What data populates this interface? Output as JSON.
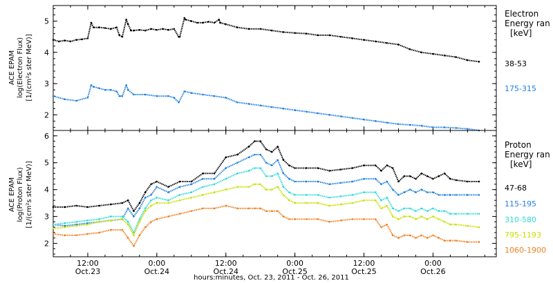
{
  "xlabel": "hours:minutes, Oct. 23, 2011 - Oct. 26, 2011",
  "x_ticks": [
    {
      "t": 12,
      "time": "12:00",
      "date": "Oct.23"
    },
    {
      "t": 24,
      "time": "0:00",
      "date": "Oct.24"
    },
    {
      "t": 36,
      "time": "12:00",
      "date": "Oct.24"
    },
    {
      "t": 48,
      "time": "0:00",
      "date": "Oct.25"
    },
    {
      "t": 60,
      "time": "12:00",
      "date": "Oct.25"
    },
    {
      "t": 72,
      "time": "0:00",
      "date": "Oct.26"
    }
  ],
  "chart_data": [
    {
      "type": "scatter",
      "ylabel": "ACE EPAM",
      "ylabel2": "log(Electron Flux)",
      "ylabel3": "[1/(cm²s ster MeV)]",
      "legend_title": [
        "Electron",
        "Energy ran",
        "[keV]"
      ],
      "xlim": [
        6,
        83
      ],
      "ylim": [
        1.5,
        5.5
      ],
      "yticks": [
        2,
        3,
        4,
        5
      ],
      "series": [
        {
          "name": "38-53",
          "color": "#000000",
          "x": [
            6,
            7,
            8,
            9,
            10,
            11,
            12,
            12.6,
            13,
            14,
            15,
            16,
            17,
            17.5,
            18,
            18.7,
            19,
            19.5,
            20,
            21,
            22,
            23,
            24,
            25,
            26,
            27,
            27.8,
            28,
            28.8,
            29,
            30,
            31,
            32,
            33,
            34,
            34.8,
            35,
            36,
            38,
            40,
            42,
            44,
            46,
            48,
            50,
            52,
            54,
            56,
            58,
            60,
            62,
            64,
            66,
            68,
            70,
            72,
            74,
            76,
            78,
            80
          ],
          "y": [
            4.4,
            4.35,
            4.38,
            4.35,
            4.4,
            4.42,
            4.45,
            4.95,
            4.8,
            4.8,
            4.78,
            4.75,
            4.8,
            4.55,
            4.5,
            5.05,
            4.9,
            4.7,
            4.7,
            4.72,
            4.7,
            4.75,
            4.72,
            4.75,
            4.72,
            4.75,
            4.5,
            4.5,
            5.1,
            5.05,
            5.0,
            4.95,
            4.95,
            4.98,
            4.95,
            5.05,
            4.95,
            4.9,
            4.8,
            4.75,
            4.75,
            4.7,
            4.65,
            4.62,
            4.6,
            4.55,
            4.55,
            4.5,
            4.45,
            4.4,
            4.35,
            4.3,
            4.25,
            4.1,
            4.0,
            3.95,
            3.9,
            3.85,
            3.75,
            3.7
          ]
        },
        {
          "name": "175-315",
          "color": "#1f7fdf",
          "x": [
            6,
            8,
            10,
            12,
            12.6,
            13,
            14,
            15,
            16,
            17,
            17.5,
            18,
            18.7,
            19,
            20,
            22,
            24,
            26,
            27,
            27.8,
            28.8,
            30,
            32,
            34,
            36,
            38,
            40,
            42,
            44,
            46,
            48,
            50,
            52,
            54,
            56,
            58,
            60,
            62,
            64,
            66,
            68,
            70,
            72,
            74,
            76,
            78,
            80
          ],
          "y": [
            2.6,
            2.5,
            2.45,
            2.55,
            2.95,
            2.9,
            2.85,
            2.8,
            2.8,
            2.75,
            2.6,
            2.6,
            2.95,
            2.8,
            2.65,
            2.65,
            2.6,
            2.6,
            2.55,
            2.4,
            2.75,
            2.7,
            2.65,
            2.6,
            2.55,
            2.4,
            2.35,
            2.3,
            2.25,
            2.2,
            2.15,
            2.1,
            2.05,
            2.0,
            1.95,
            1.9,
            1.85,
            1.8,
            1.75,
            1.7,
            1.68,
            1.65,
            1.6,
            1.6,
            1.58,
            1.55,
            1.5
          ]
        }
      ]
    },
    {
      "type": "scatter",
      "ylabel": "ACE EPAM",
      "ylabel2": "log(Proton Flux)",
      "ylabel3": "[1/(cm²s ster MeV)]",
      "legend_title": [
        "Proton",
        "Energy ran",
        "[keV]"
      ],
      "xlim": [
        6,
        83
      ],
      "ylim": [
        1.5,
        6.2
      ],
      "yticks": [
        2,
        3,
        4,
        5,
        6
      ],
      "series": [
        {
          "name": "47-68",
          "color": "#000000",
          "x": [
            6,
            8,
            10,
            12,
            14,
            16,
            18,
            19,
            20,
            21,
            22,
            23,
            24,
            26,
            28,
            30,
            32,
            34,
            36,
            38,
            40,
            41,
            42,
            43,
            44,
            45,
            46,
            47,
            48,
            50,
            52,
            54,
            56,
            58,
            60,
            62,
            63,
            64,
            65,
            66,
            67,
            68,
            69,
            70,
            71,
            72,
            73,
            74,
            75,
            76,
            78,
            80
          ],
          "y": [
            3.35,
            3.35,
            3.4,
            3.35,
            3.4,
            3.45,
            3.5,
            3.6,
            3.2,
            3.5,
            3.9,
            4.2,
            4.3,
            4.1,
            4.3,
            4.3,
            4.6,
            4.6,
            5.2,
            5.3,
            5.6,
            5.8,
            5.8,
            5.5,
            5.4,
            5.6,
            5.1,
            4.9,
            4.8,
            4.8,
            4.8,
            4.7,
            4.75,
            4.8,
            4.9,
            4.9,
            4.7,
            4.9,
            4.8,
            4.3,
            4.5,
            4.5,
            4.4,
            4.6,
            4.5,
            4.4,
            4.5,
            4.6,
            4.4,
            4.35,
            4.3,
            4.3
          ]
        },
        {
          "name": "115-195",
          "color": "#1f7fdf",
          "x": [
            6,
            8,
            10,
            12,
            14,
            16,
            18,
            19,
            20,
            21,
            22,
            23,
            24,
            26,
            28,
            30,
            32,
            34,
            36,
            38,
            40,
            41,
            42,
            43,
            44,
            45,
            46,
            47,
            48,
            50,
            52,
            54,
            56,
            58,
            60,
            62,
            63,
            64,
            65,
            66,
            67,
            68,
            69,
            70,
            71,
            72,
            73,
            74,
            75,
            76,
            78,
            80
          ],
          "y": [
            2.7,
            2.65,
            2.7,
            2.75,
            2.8,
            2.85,
            2.9,
            3.3,
            3.0,
            3.3,
            3.7,
            3.8,
            4.1,
            3.9,
            4.1,
            4.2,
            4.4,
            4.4,
            4.8,
            5.0,
            5.2,
            5.3,
            5.3,
            5.0,
            4.9,
            5.1,
            4.6,
            4.4,
            4.3,
            4.3,
            4.3,
            4.2,
            4.25,
            4.3,
            4.4,
            4.4,
            4.2,
            4.3,
            4.0,
            3.8,
            3.9,
            4.0,
            3.9,
            4.0,
            3.9,
            3.9,
            3.8,
            3.8,
            3.8,
            3.8,
            3.8,
            3.8
          ]
        },
        {
          "name": "310-580",
          "color": "#30d8d8",
          "x": [
            6,
            8,
            10,
            12,
            14,
            16,
            18,
            19,
            20,
            21,
            22,
            23,
            24,
            26,
            28,
            30,
            32,
            34,
            36,
            38,
            40,
            41,
            42,
            43,
            44,
            45,
            46,
            47,
            48,
            50,
            52,
            54,
            56,
            58,
            60,
            62,
            63,
            64,
            65,
            66,
            67,
            68,
            69,
            70,
            71,
            72,
            73,
            74,
            75,
            76,
            78,
            80
          ],
          "y": [
            2.7,
            2.75,
            2.8,
            2.85,
            2.9,
            3.0,
            3.0,
            2.8,
            2.4,
            2.9,
            3.3,
            3.6,
            3.7,
            3.6,
            3.8,
            3.9,
            4.1,
            4.2,
            4.4,
            4.6,
            4.7,
            4.8,
            4.8,
            4.5,
            4.5,
            4.6,
            4.1,
            3.9,
            3.8,
            3.8,
            3.8,
            3.7,
            3.75,
            3.8,
            3.9,
            3.9,
            3.6,
            3.7,
            3.3,
            3.2,
            3.3,
            3.3,
            3.2,
            3.3,
            3.2,
            3.3,
            3.2,
            3.2,
            3.1,
            3.1,
            3.1,
            3.1
          ]
        },
        {
          "name": "795-1193",
          "color": "#c8e000",
          "x": [
            6,
            8,
            10,
            12,
            14,
            16,
            18,
            19,
            20,
            21,
            22,
            23,
            24,
            26,
            28,
            30,
            32,
            34,
            36,
            38,
            40,
            41,
            42,
            43,
            44,
            45,
            46,
            47,
            48,
            50,
            52,
            54,
            56,
            58,
            60,
            62,
            63,
            64,
            65,
            66,
            67,
            68,
            69,
            70,
            71,
            72,
            73,
            74,
            75,
            76,
            78,
            80
          ],
          "y": [
            2.55,
            2.6,
            2.65,
            2.7,
            2.8,
            2.85,
            2.9,
            2.7,
            2.3,
            2.8,
            3.2,
            3.4,
            3.5,
            3.5,
            3.6,
            3.7,
            3.8,
            3.9,
            4.0,
            4.1,
            4.1,
            4.2,
            4.2,
            4.0,
            4.0,
            4.1,
            3.8,
            3.6,
            3.5,
            3.5,
            3.5,
            3.4,
            3.45,
            3.5,
            3.6,
            3.6,
            3.3,
            3.4,
            3.0,
            2.9,
            3.0,
            3.0,
            2.9,
            3.0,
            2.9,
            3.0,
            2.9,
            2.8,
            2.7,
            2.7,
            2.65,
            2.6
          ]
        },
        {
          "name": "1060-1900",
          "color": "#f08020",
          "x": [
            6,
            8,
            10,
            12,
            14,
            16,
            18,
            19,
            20,
            21,
            22,
            23,
            24,
            26,
            28,
            30,
            32,
            34,
            36,
            38,
            40,
            41,
            42,
            43,
            44,
            45,
            46,
            47,
            48,
            50,
            52,
            54,
            56,
            58,
            60,
            62,
            63,
            64,
            65,
            66,
            67,
            68,
            69,
            70,
            71,
            72,
            73,
            74,
            75,
            76,
            78,
            80
          ],
          "y": [
            2.35,
            2.3,
            2.3,
            2.35,
            2.4,
            2.5,
            2.5,
            2.2,
            1.9,
            2.3,
            2.6,
            2.8,
            2.9,
            3.0,
            3.1,
            3.2,
            3.3,
            3.3,
            3.4,
            3.3,
            3.3,
            3.3,
            3.3,
            3.2,
            3.2,
            3.2,
            3.0,
            2.9,
            2.9,
            2.9,
            2.9,
            2.8,
            2.85,
            2.9,
            2.9,
            2.9,
            2.6,
            2.7,
            2.3,
            2.2,
            2.3,
            2.3,
            2.2,
            2.3,
            2.2,
            2.3,
            2.2,
            2.1,
            2.1,
            2.1,
            2.05,
            2.05
          ]
        }
      ]
    }
  ]
}
